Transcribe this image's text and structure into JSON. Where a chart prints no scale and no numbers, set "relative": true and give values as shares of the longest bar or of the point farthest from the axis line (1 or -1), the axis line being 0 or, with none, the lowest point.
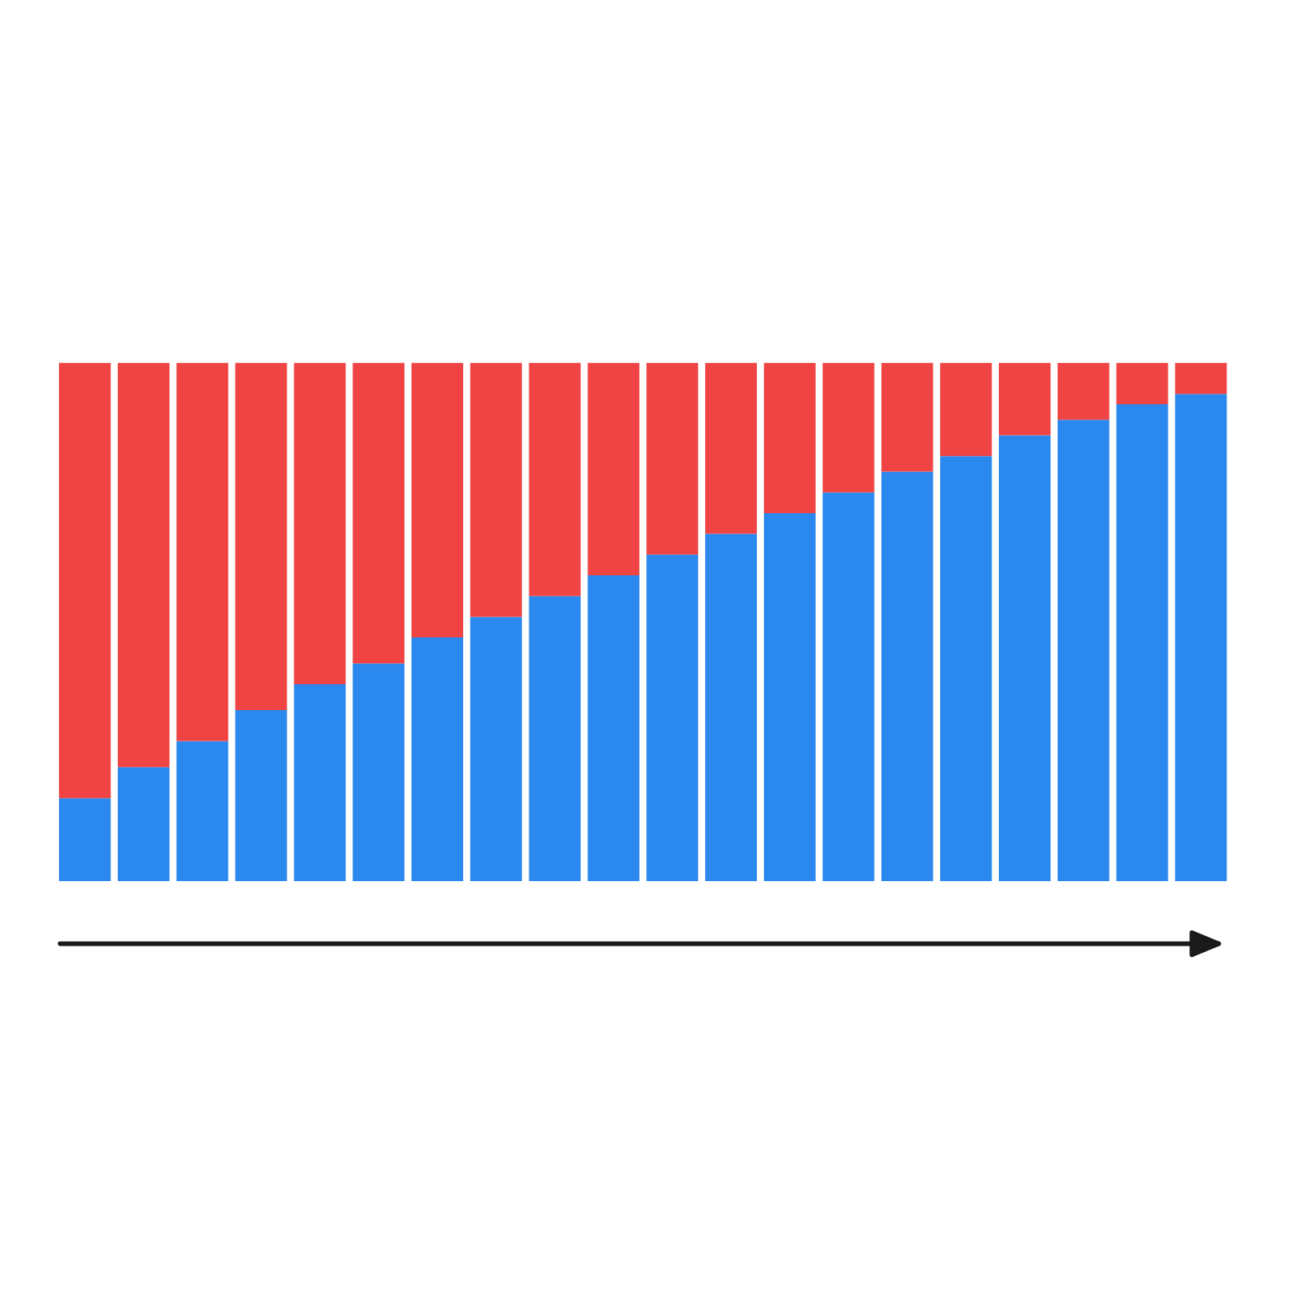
{
  "chart_data": {
    "type": "bar",
    "stacked": true,
    "relative": true,
    "categories": [
      null,
      null,
      null,
      null,
      null,
      null,
      null,
      null,
      null,
      null,
      null,
      null,
      null,
      null,
      null,
      null,
      null,
      null,
      null,
      null
    ],
    "series": [
      {
        "color": "#2b88ee",
        "values": [
          0.16,
          0.22,
          0.27,
          0.33,
          0.38,
          0.42,
          0.47,
          0.51,
          0.55,
          0.59,
          0.63,
          0.67,
          0.71,
          0.75,
          0.79,
          0.82,
          0.86,
          0.89,
          0.92,
          0.94
        ]
      },
      {
        "color": "#f04444",
        "values": [
          0.84,
          0.78,
          0.73,
          0.67,
          0.62,
          0.58,
          0.53,
          0.49,
          0.45,
          0.41,
          0.37,
          0.33,
          0.29,
          0.25,
          0.21,
          0.18,
          0.14,
          0.11,
          0.08,
          0.06
        ]
      }
    ]
  }
}
